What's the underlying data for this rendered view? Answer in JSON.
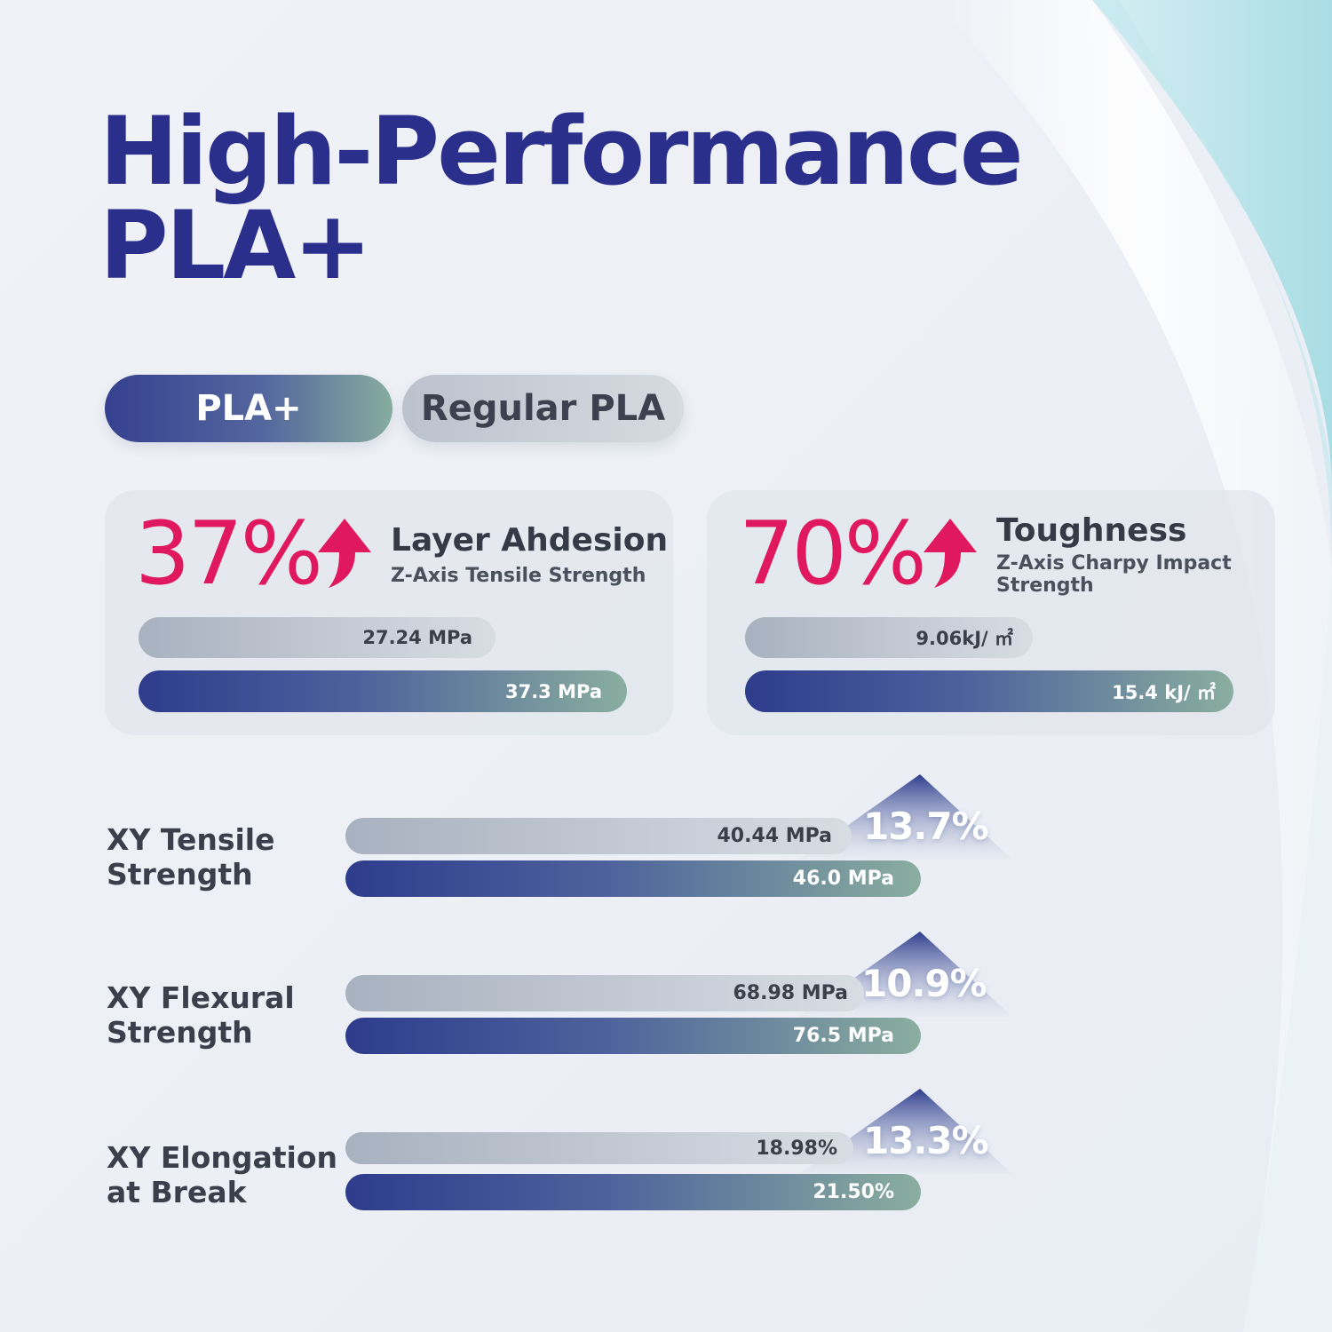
{
  "title": {
    "line1": "High-Performance",
    "line2": "PLA+"
  },
  "legend": {
    "plus_label": "PLA+",
    "regular_label": "Regular PLA"
  },
  "colors": {
    "title": "#2b2f8c",
    "accent_red": "#e0195f",
    "plus_bar_start": "#2e3c8c",
    "plus_bar_end": "#8aae9f",
    "regular_bar": "#b8bfca"
  },
  "cards": [
    {
      "percent": "37%",
      "title": "Layer Ahdesion",
      "subtitle": "Z-Axis Tensile Strength",
      "icon": "arrow-up-icon",
      "regular_label": "27.24 MPa",
      "plus_label": "37.3 MPa"
    },
    {
      "percent": "70%",
      "title": "Toughness",
      "subtitle": "Z-Axis Charpy Impact Strength",
      "icon": "arrow-up-icon",
      "regular_label": "9.06kJ/ ㎡",
      "plus_label": "15.4 kJ/ ㎡"
    }
  ],
  "rows": [
    {
      "label": "XY Tensile Strength",
      "regular_label": "40.44 MPa",
      "plus_label": "46.0 MPa",
      "increase": "13.7%"
    },
    {
      "label": "XY Flexural Strength",
      "regular_label": "68.98 MPa",
      "plus_label": "76.5 MPa",
      "increase": "10.9%"
    },
    {
      "label": "XY Elongation at Break",
      "regular_label": "18.98%",
      "plus_label": "21.50%",
      "increase": "13.3%"
    }
  ],
  "chart_data": {
    "type": "bar",
    "series_names": [
      "Regular PLA",
      "PLA+"
    ],
    "groups": [
      {
        "name": "Layer Ahdesion",
        "unit": "MPa",
        "values": [
          27.24,
          37.3
        ],
        "increase_pct": 37
      },
      {
        "name": "Toughness",
        "unit": "kJ/㎡",
        "values": [
          9.06,
          15.4
        ],
        "increase_pct": 70
      },
      {
        "name": "XY Tensile Strength",
        "unit": "MPa",
        "values": [
          40.44,
          46.0
        ],
        "increase_pct": 13.7
      },
      {
        "name": "XY Flexural Strength",
        "unit": "MPa",
        "values": [
          68.98,
          76.5
        ],
        "increase_pct": 10.9
      },
      {
        "name": "XY Elongation at Break",
        "unit": "%",
        "values": [
          18.98,
          21.5
        ],
        "increase_pct": 13.3
      }
    ]
  }
}
